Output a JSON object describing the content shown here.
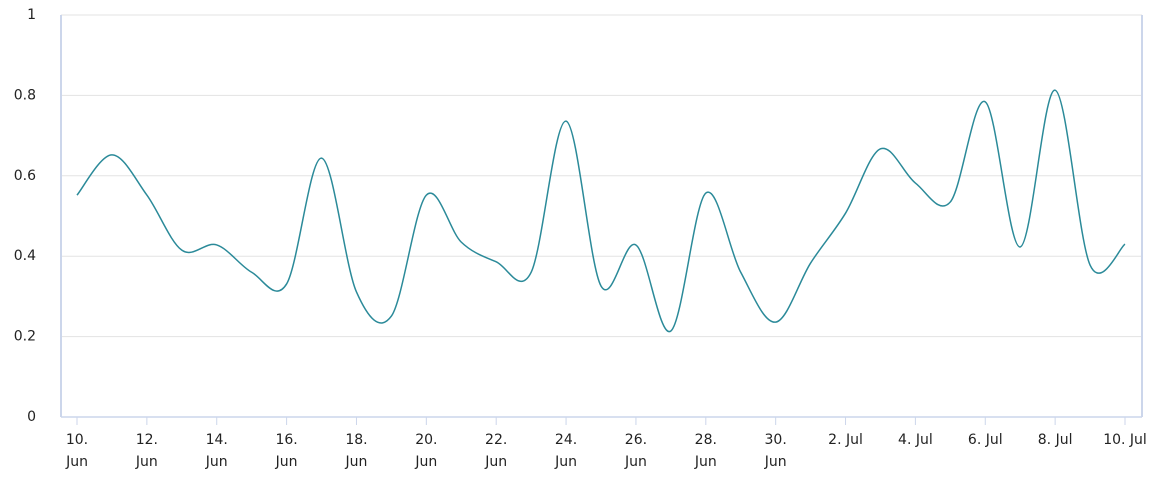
{
  "chart_data": {
    "type": "line",
    "categories": [
      "10. Jun",
      null,
      "12. Jun",
      null,
      "14. Jun",
      null,
      "16. Jun",
      null,
      "18. Jun",
      null,
      "20. Jun",
      null,
      "22. Jun",
      null,
      "24. Jun",
      null,
      "26. Jun",
      null,
      "28. Jun",
      null,
      "30. Jun",
      null,
      "2. Jul",
      null,
      "4. Jul",
      null,
      "6. Jul",
      null,
      "8. Jul",
      null,
      "10. Jul"
    ],
    "values": [
      0.552,
      0.652,
      0.552,
      0.415,
      0.428,
      0.36,
      0.331,
      0.644,
      0.311,
      0.251,
      0.552,
      0.435,
      0.386,
      0.36,
      0.736,
      0.326,
      0.428,
      0.214,
      0.557,
      0.36,
      0.236,
      0.383,
      0.507,
      0.667,
      0.582,
      0.535,
      0.784,
      0.423,
      0.813,
      0.378,
      0.43
    ],
    "color": "#2b8a99",
    "ylim": [
      0,
      1
    ],
    "yticks": [
      0,
      0.2,
      0.4,
      0.6,
      0.8,
      1
    ],
    "grid": true
  }
}
